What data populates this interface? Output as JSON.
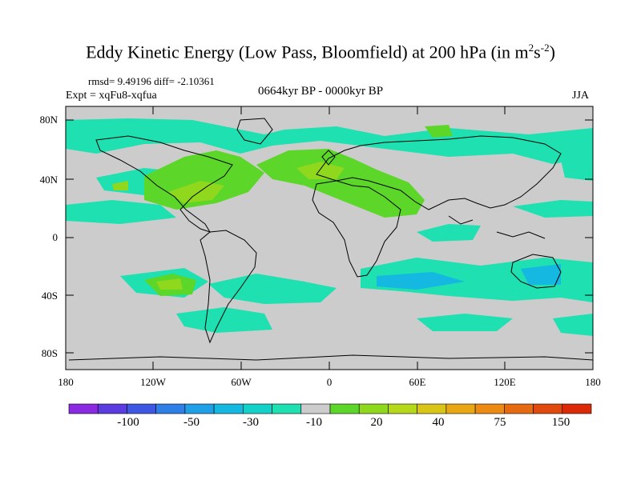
{
  "title": {
    "main": "Eddy Kinetic Energy (Low Pass, Bloomfield) at 200 hPa (in m",
    "sup1": "2",
    "mid": "s",
    "sup2": "-2",
    "close": ")"
  },
  "stats": "rmsd= 9.49196 diff= -2.10361",
  "experiment": "Expt = xqFu8-xqfua",
  "period": "0664kyr BP - 0000kyr BP",
  "season": "JJA",
  "axes": {
    "y_ticks": [
      "80N",
      "40N",
      "0",
      "40S",
      "80S"
    ],
    "x_ticks": [
      "180",
      "120W",
      "60W",
      "0",
      "60E",
      "120E",
      "180"
    ]
  },
  "colorbar": {
    "labels": [
      "-100",
      "-50",
      "-30",
      "-10",
      "20",
      "40",
      "75",
      "150"
    ],
    "colors": [
      "#8a2be2",
      "#5a3ce0",
      "#3f58e3",
      "#2e7fe6",
      "#1f9fe6",
      "#14b8e0",
      "#13d0c8",
      "#1ee0b0",
      "#cccccc",
      "#5bd629",
      "#8fd81e",
      "#b6d81b",
      "#d8c516",
      "#e8a713",
      "#ec8a12",
      "#e66a10",
      "#e04a0c",
      "#dc2a08"
    ],
    "neutral_color": "#cccccc",
    "land_outline_color": "#000000"
  }
}
